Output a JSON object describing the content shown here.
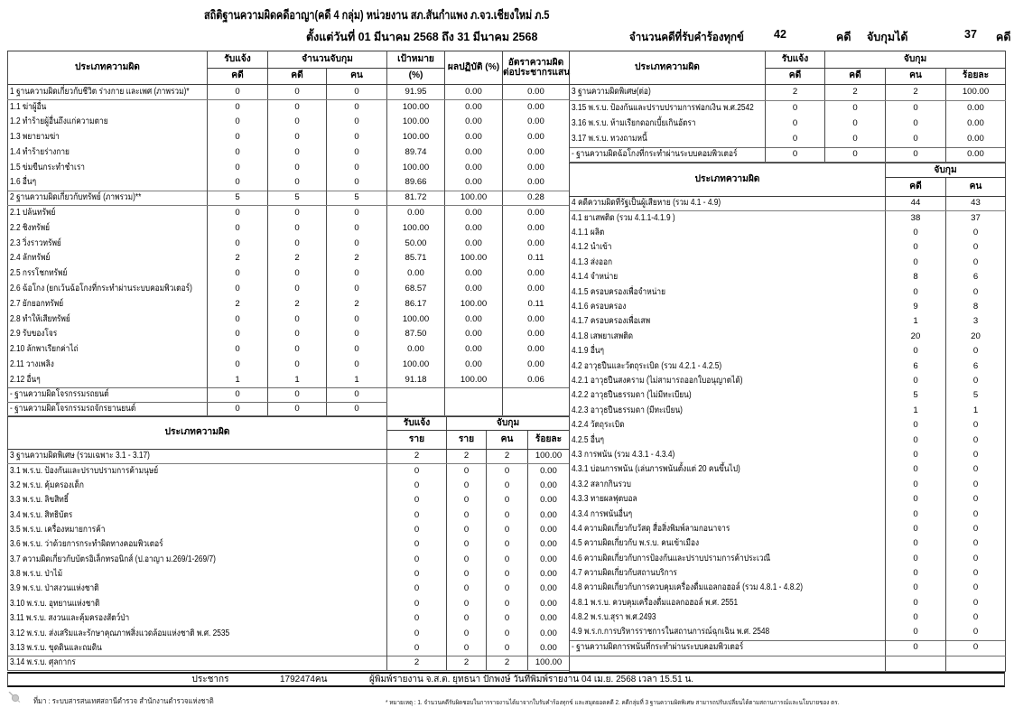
{
  "title": "สถิติฐานความผิดคดีอาญา(คดี 4 กลุ่ม) หน่วยงาน สภ.สันกำแพง ภ.จว.เชียงใหม่ ภ.5",
  "subtitle": "ตั้งแต่วันที่ 01 มีนาคม 2568 ถึง 31 มีนาคม 2568",
  "summary": {
    "received_label": "จำนวนคดีที่รับคำร้องทุกข์",
    "received_value": "42",
    "received_unit": "คดี",
    "arrested_label": "จับกุมได้",
    "arrested_value": "37",
    "arrested_unit": "คดี"
  },
  "headers": {
    "offense_type": "ประเภทความผิด",
    "received": "รับแจ้ง",
    "arrest_total": "จำนวนจับกุม",
    "arrest": "จับกุม",
    "case": "คดี",
    "person": "คน",
    "target": "เป้าหมาย",
    "target_unit": "(%)",
    "performance": "ผลปฏิบัติ (%)",
    "rate_line1": "อัตราความผิด",
    "rate_line2": "ต่อประชากรแสน",
    "percent": "ร้อยละ",
    "rai": "ราย"
  },
  "left_top": {
    "rows": [
      {
        "style": "group",
        "label": "1  ฐานความผิดเกี่ยวกับชีวิต ร่างกาย และเพศ (ภาพรวม)*",
        "cells": [
          "0",
          "0",
          "0",
          "91.95",
          "0.00",
          "0.00"
        ]
      },
      {
        "style": "item",
        "label": "1.1 ฆ่าผู้อื่น",
        "cells": [
          "0",
          "0",
          "0",
          "100.00",
          "0.00",
          "0.00"
        ]
      },
      {
        "style": "item",
        "label": "1.2 ทำร้ายผู้อื่นถึงแก่ความตาย",
        "cells": [
          "0",
          "0",
          "0",
          "100.00",
          "0.00",
          "0.00"
        ]
      },
      {
        "style": "item",
        "label": "1.3 พยายามฆ่า",
        "cells": [
          "0",
          "0",
          "0",
          "100.00",
          "0.00",
          "0.00"
        ]
      },
      {
        "style": "item",
        "label": "1.4 ทำร้ายร่างกาย",
        "cells": [
          "0",
          "0",
          "0",
          "89.74",
          "0.00",
          "0.00"
        ]
      },
      {
        "style": "item",
        "label": "1.5 ข่มขืนกระทำชำเรา",
        "cells": [
          "0",
          "0",
          "0",
          "100.00",
          "0.00",
          "0.00"
        ]
      },
      {
        "style": "item",
        "label": "1.6 อื่นๆ",
        "cells": [
          "0",
          "0",
          "0",
          "89.66",
          "0.00",
          "0.00"
        ]
      },
      {
        "style": "group",
        "label": "2  ฐานความผิดเกี่ยวกับทรัพย์ (ภาพรวม)**",
        "cells": [
          "5",
          "5",
          "5",
          "81.72",
          "100.00",
          "0.28"
        ]
      },
      {
        "style": "item",
        "label": "2.1 ปล้นทรัพย์",
        "cells": [
          "0",
          "0",
          "0",
          "0.00",
          "0.00",
          "0.00"
        ]
      },
      {
        "style": "item",
        "label": "2.2 ชิงทรัพย์",
        "cells": [
          "0",
          "0",
          "0",
          "100.00",
          "0.00",
          "0.00"
        ]
      },
      {
        "style": "item",
        "label": "2.3 วิ่งราวทรัพย์",
        "cells": [
          "0",
          "0",
          "0",
          "50.00",
          "0.00",
          "0.00"
        ]
      },
      {
        "style": "item",
        "label": "2.4 ลักทรัพย์",
        "cells": [
          "2",
          "2",
          "2",
          "85.71",
          "100.00",
          "0.11"
        ]
      },
      {
        "style": "item",
        "label": "2.5 กรรโชกทรัพย์",
        "cells": [
          "0",
          "0",
          "0",
          "0.00",
          "0.00",
          "0.00"
        ]
      },
      {
        "style": "item",
        "label": "2.6 ฉ้อโกง (ยกเว้นฉ้อโกงที่กระทำผ่านระบบคอมพิวเตอร์)",
        "cells": [
          "0",
          "0",
          "0",
          "68.57",
          "0.00",
          "0.00"
        ]
      },
      {
        "style": "item",
        "label": "2.7 ยักยอกทรัพย์",
        "cells": [
          "2",
          "2",
          "2",
          "86.17",
          "100.00",
          "0.11"
        ]
      },
      {
        "style": "item",
        "label": "2.8 ทำให้เสียทรัพย์",
        "cells": [
          "0",
          "0",
          "0",
          "100.00",
          "0.00",
          "0.00"
        ]
      },
      {
        "style": "item",
        "label": "2.9 รับของโจร",
        "cells": [
          "0",
          "0",
          "0",
          "87.50",
          "0.00",
          "0.00"
        ]
      },
      {
        "style": "item",
        "label": "2.10 ลักพาเรียกค่าไถ่",
        "cells": [
          "0",
          "0",
          "0",
          "0.00",
          "0.00",
          "0.00"
        ]
      },
      {
        "style": "item",
        "label": "2.11 วางเพลิง",
        "cells": [
          "0",
          "0",
          "0",
          "100.00",
          "0.00",
          "0.00"
        ]
      },
      {
        "style": "item",
        "label": "2.12 อื่นๆ",
        "cells": [
          "1",
          "1",
          "1",
          "91.18",
          "100.00",
          "0.06"
        ]
      },
      {
        "style": "boxed",
        "label": "- ฐานความผิดโจรกรรมรถยนต์",
        "cells": [
          "0",
          "0",
          "0"
        ],
        "tail_cells": 3,
        "tail_rowspan": 2
      },
      {
        "style": "boxed",
        "label": "- ฐานความผิดโจรกรรมรถจักรยานยนต์",
        "cells": [
          "0",
          "0",
          "0"
        ],
        "no_tail": true
      }
    ]
  },
  "left_bottom": {
    "rows": [
      {
        "style": "group",
        "label": "3  ฐานความผิดพิเศษ (รวมเฉพาะ 3.1 - 3.17)",
        "cells": [
          "2",
          "2",
          "2",
          "100.00"
        ]
      },
      {
        "style": "item",
        "label": "3.1 พ.ร.บ. ป้องกันและปราบปรามการค้ามนุษย์",
        "cells": [
          "0",
          "0",
          "0",
          "0.00"
        ]
      },
      {
        "style": "item",
        "label": "3.2 พ.ร.บ. คุ้มครองเด็ก",
        "cells": [
          "0",
          "0",
          "0",
          "0.00"
        ]
      },
      {
        "style": "item",
        "label": "3.3 พ.ร.บ. ลิขสิทธิ์",
        "cells": [
          "0",
          "0",
          "0",
          "0.00"
        ]
      },
      {
        "style": "item",
        "label": "3.4 พ.ร.บ. สิทธิบัตร",
        "cells": [
          "0",
          "0",
          "0",
          "0.00"
        ]
      },
      {
        "style": "item",
        "label": "3.5 พ.ร.บ. เครื่องหมายการค้า",
        "cells": [
          "0",
          "0",
          "0",
          "0.00"
        ]
      },
      {
        "style": "item",
        "label": "3.6 พ.ร.บ. ว่าด้วยการกระทำผิดทางคอมพิวเตอร์",
        "cells": [
          "0",
          "0",
          "0",
          "0.00"
        ]
      },
      {
        "style": "item",
        "label": "3.7 ความผิดเกี่ยวกับบัตรอิเล็กทรอนิกส์ (ป.อาญา ม.269/1-269/7)",
        "cells": [
          "0",
          "0",
          "0",
          "0.00"
        ]
      },
      {
        "style": "item",
        "label": "3.8 พ.ร.บ. ป่าไม้",
        "cells": [
          "0",
          "0",
          "0",
          "0.00"
        ]
      },
      {
        "style": "item",
        "label": "3.9 พ.ร.บ. ป่าสงวนแห่งชาติ",
        "cells": [
          "0",
          "0",
          "0",
          "0.00"
        ]
      },
      {
        "style": "item",
        "label": "3.10 พ.ร.บ. อุทยานแห่งชาติ",
        "cells": [
          "0",
          "0",
          "0",
          "0.00"
        ]
      },
      {
        "style": "item",
        "label": "3.11 พ.ร.บ. สงวนและคุ้มครองสัตว์ป่า",
        "cells": [
          "0",
          "0",
          "0",
          "0.00"
        ]
      },
      {
        "style": "item",
        "label": "3.12 พ.ร.บ. ส่งเสริมและรักษาคุณภาพสิ่งแวดล้อมแห่งชาติ พ.ศ. 2535",
        "cells": [
          "0",
          "0",
          "0",
          "0.00"
        ]
      },
      {
        "style": "item",
        "label": "3.13  พ.ร.บ. ขุดดินและถมดิน",
        "cells": [
          "0",
          "0",
          "0",
          "0.00"
        ]
      },
      {
        "style": "boxed",
        "label": "3.14 พ.ร.บ. ศุลกากร",
        "cells": [
          "2",
          "2",
          "2",
          "100.00"
        ]
      }
    ]
  },
  "right_top": {
    "rows": [
      {
        "style": "group",
        "label": "3  ฐานความผิดพิเศษ(ต่อ)",
        "cells": [
          "2",
          "2",
          "2",
          "100.00"
        ]
      },
      {
        "style": "item",
        "label": "3.15 พ.ร.บ. ป้องกันและปราบปรามการฟอกเงิน พ.ศ.2542",
        "cells": [
          "0",
          "0",
          "0",
          "0.00"
        ]
      },
      {
        "style": "item",
        "label": "3.16 พ.ร.บ. ห้ามเรียกดอกเบี้ยเกินอัตรา",
        "cells": [
          "0",
          "0",
          "0",
          "0.00"
        ]
      },
      {
        "style": "item",
        "label": "3.17 พ.ร.บ. ทวงถามหนี้",
        "cells": [
          "0",
          "0",
          "0",
          "0.00"
        ]
      },
      {
        "style": "boxed",
        "label": "- ฐานความผิดฉ้อโกงที่กระทำผ่านระบบคอมพิวเตอร์",
        "cells": [
          "0",
          "0",
          "0",
          "0.00"
        ]
      }
    ]
  },
  "right_bottom": {
    "rows": [
      {
        "style": "group",
        "label": "4 คดีความผิดที่รัฐเป็นผู้เสียหาย (รวม 4.1 - 4.9)",
        "cells": [
          "44",
          "43"
        ]
      },
      {
        "style": "item",
        "label": "4.1 ยาเสพติด (รวม 4.1.1-4.1.9 )",
        "cells": [
          "38",
          "37"
        ]
      },
      {
        "style": "item",
        "label": "4.1.1 ผลิต",
        "cells": [
          "0",
          "0"
        ]
      },
      {
        "style": "item",
        "label": "4.1.2 นำเข้า",
        "cells": [
          "0",
          "0"
        ]
      },
      {
        "style": "item",
        "label": "4.1.3 ส่งออก",
        "cells": [
          "0",
          "0"
        ]
      },
      {
        "style": "item",
        "label": "4.1.4 จำหน่าย",
        "cells": [
          "8",
          "6"
        ]
      },
      {
        "style": "item",
        "label": "4.1.5 ครอบครองเพื่อจำหน่าย",
        "cells": [
          "0",
          "0"
        ]
      },
      {
        "style": "item",
        "label": "4.1.6 ครอบครอง",
        "cells": [
          "9",
          "8"
        ]
      },
      {
        "style": "item",
        "label": "4.1.7 ครอบครองเพื่อเสพ",
        "cells": [
          "1",
          "3"
        ]
      },
      {
        "style": "item",
        "label": "4.1.8 เสพยาเสพติด",
        "cells": [
          "20",
          "20"
        ]
      },
      {
        "style": "item",
        "label": "4.1.9 อื่นๆ",
        "cells": [
          "0",
          "0"
        ]
      },
      {
        "style": "item",
        "label": "4.2 อาวุธปืนและวัตถุระเบิด (รวม 4.2.1 - 4.2.5)",
        "cells": [
          "6",
          "6"
        ]
      },
      {
        "style": "item",
        "label": "4.2.1 อาวุธปืนสงคราม (ไม่สามารถออกใบอนุญาตได้)",
        "cells": [
          "0",
          "0"
        ]
      },
      {
        "style": "item",
        "label": "4.2.2 อาวุธปืนธรรมดา (ไม่มีทะเบียน)",
        "cells": [
          "5",
          "5"
        ]
      },
      {
        "style": "item",
        "label": "4.2.3 อาวุธปืนธรรมดา (มีทะเบียน)",
        "cells": [
          "1",
          "1"
        ]
      },
      {
        "style": "item",
        "label": "4.2.4 วัตถุระเบิด",
        "cells": [
          "0",
          "0"
        ]
      },
      {
        "style": "item",
        "label": "4.2.5 อื่นๆ",
        "cells": [
          "0",
          "0"
        ]
      },
      {
        "style": "item",
        "label": "4.3 การพนัน (รวม 4.3.1 - 4.3.4)",
        "cells": [
          "0",
          "0"
        ]
      },
      {
        "style": "item",
        "label": "4.3.1 บ่อนการพนัน (เล่นการพนันตั้งแต่ 20 คนขึ้นไป)",
        "cells": [
          "0",
          "0"
        ]
      },
      {
        "style": "item",
        "label": "4.3.2 สลากกินรวบ",
        "cells": [
          "0",
          "0"
        ]
      },
      {
        "style": "item",
        "label": "4.3.3 ทายผลฟุตบอล",
        "cells": [
          "0",
          "0"
        ]
      },
      {
        "style": "item",
        "label": "4.3.4 การพนันอื่นๆ",
        "cells": [
          "0",
          "0"
        ]
      },
      {
        "style": "item",
        "label": "4.4 ความผิดเกี่ยวกับวัสดุ สื่อสิ่งพิมพ์ลามกอนาจาร",
        "cells": [
          "0",
          "0"
        ]
      },
      {
        "style": "item",
        "label": "4.5 ความผิดเกี่ยวกับ พ.ร.บ. คนเข้าเมือง",
        "cells": [
          "0",
          "0"
        ]
      },
      {
        "style": "item",
        "label": "4.6 ความผิดเกี่ยวกับการป้องกันและปราบปรามการค้าประเวณี",
        "cells": [
          "0",
          "0"
        ]
      },
      {
        "style": "item",
        "label": "4.7 ความผิดเกี่ยวกับสถานบริการ",
        "cells": [
          "0",
          "0"
        ]
      },
      {
        "style": "item",
        "label": "4.8 ความผิดเกี่ยวกับการควบคุมเครื่องดื่มแอลกอฮอล์ (รวม 4.8.1 - 4.8.2)",
        "cells": [
          "0",
          "0"
        ]
      },
      {
        "style": "item",
        "label": "4.8.1 พ.ร.บ. ควบคุมเครื่องดื่มแอลกอฮอล์ พ.ศ. 2551",
        "cells": [
          "0",
          "0"
        ]
      },
      {
        "style": "item",
        "label": "4.8.2 พ.ร.บ.สุรา พ.ศ.2493",
        "cells": [
          "0",
          "0"
        ]
      },
      {
        "style": "item",
        "label": "4.9 พ.ร.ก.การบริหารราชการในสถานการณ์ฉุกเฉิน พ.ศ. 2548",
        "cells": [
          "0",
          "0"
        ]
      },
      {
        "style": "boxed",
        "label": "- ฐานความผิดการพนันที่กระทำผ่านระบบคอมพิวเตอร์",
        "cells": [
          "0",
          "0"
        ]
      },
      {
        "style": "boxed",
        "label": "",
        "cells": [
          "",
          ""
        ]
      }
    ]
  },
  "population": {
    "label": "ประชากร",
    "value": "1792474คน",
    "printed": "ผู้พิมพ์รายงาน จ.ส.ต.  ยุทธนา ปักพงษ์ วันที่พิมพ์รายงาน 04 เม.ย. 2568   เวลา 15.51 น."
  },
  "footer": {
    "source": "ที่มา : ระบบสารสนเทศสถานีตำรวจ สำนักงานตำรวจแห่งชาติ",
    "note": "* หมายเหตุ : 1. จำนวนคดีรับผิดชอบในการรายงานได้มาจากใบรับคำร้องทุกข์ และสมุดยอดคดี   2. คดีกลุ่มที่ 3 ฐานความผิดพิเศษ สามารถปรับเปลี่ยนได้ตามสถานการณ์และนโยบายของ ตร."
  }
}
